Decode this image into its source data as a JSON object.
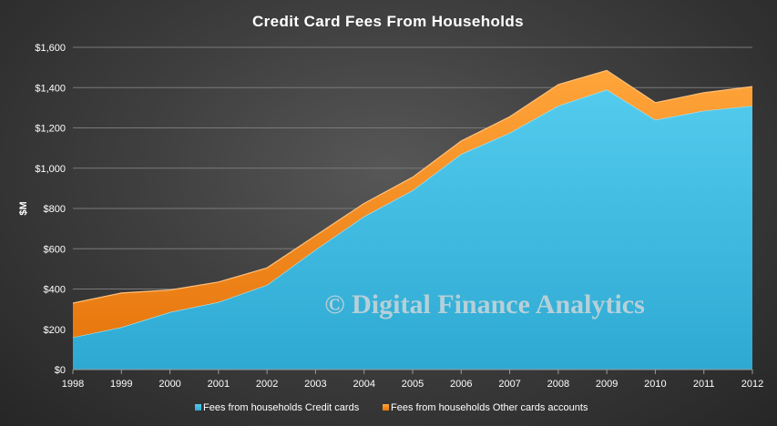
{
  "chart_data": {
    "type": "area",
    "stacked": true,
    "title": "Credit Card Fees From Households",
    "xlabel": "",
    "ylabel": "$M",
    "ylim": [
      0,
      1600
    ],
    "yticks": [
      0,
      200,
      400,
      600,
      800,
      1000,
      1200,
      1400,
      1600
    ],
    "ytick_labels": [
      "$0",
      "$200",
      "$400",
      "$600",
      "$800",
      "$1,000",
      "$1,200",
      "$1,400",
      "$1,600"
    ],
    "categories": [
      "1998",
      "1999",
      "2000",
      "2001",
      "2002",
      "2003",
      "2004",
      "2005",
      "2006",
      "2007",
      "2008",
      "2009",
      "2010",
      "2011",
      "2012"
    ],
    "series": [
      {
        "name": "Fees from households Credit cards",
        "color": "#3dbde4",
        "values": [
          160,
          210,
          285,
          335,
          420,
          595,
          760,
          890,
          1070,
          1175,
          1310,
          1390,
          1240,
          1285,
          1310
        ]
      },
      {
        "name": "Fees from households Other cards accounts",
        "color": "#f7941d",
        "values": [
          170,
          170,
          110,
          100,
          85,
          70,
          65,
          65,
          65,
          80,
          105,
          95,
          85,
          90,
          95
        ]
      }
    ],
    "grid": true,
    "legend": "bottom",
    "watermark": "© Digital Finance Analytics"
  }
}
